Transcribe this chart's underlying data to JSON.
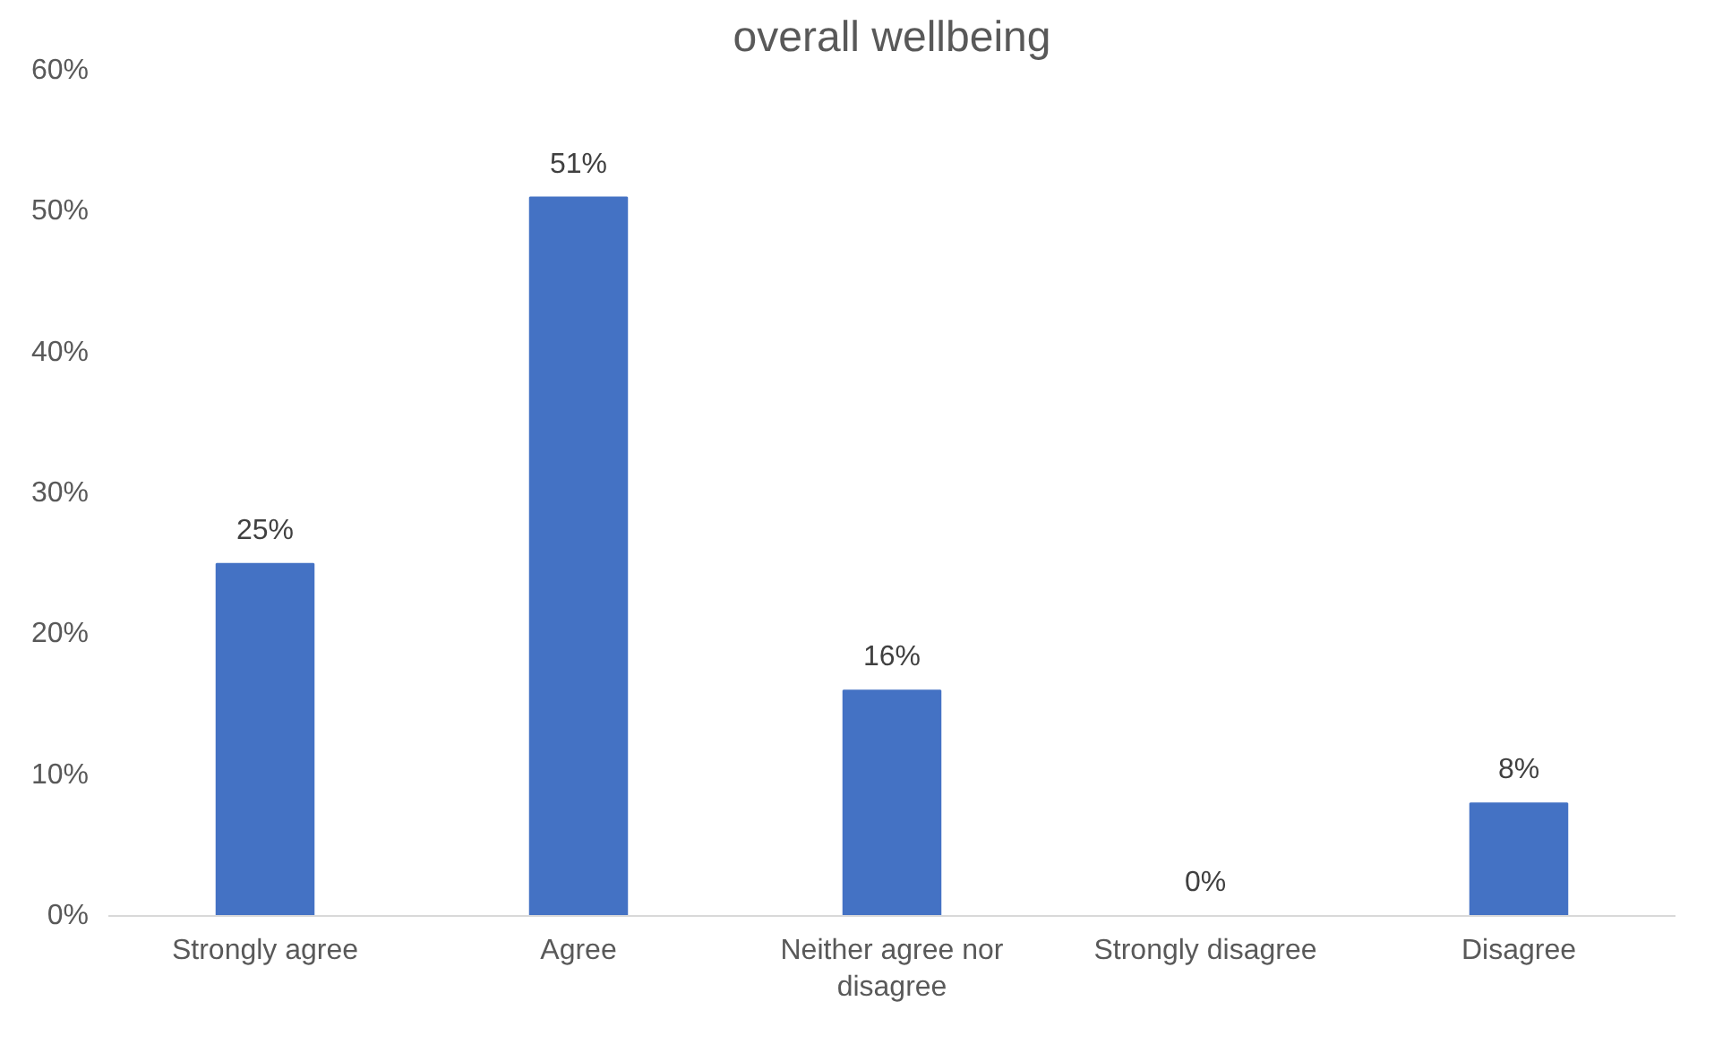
{
  "chart_data": {
    "type": "bar",
    "title": "overall wellbeing",
    "categories": [
      "Strongly agree",
      "Agree",
      "Neither agree nor disagree",
      "Strongly disagree",
      "Disagree"
    ],
    "values": [
      25,
      51,
      16,
      0,
      8
    ],
    "value_labels": [
      "25%",
      "51%",
      "16%",
      "0%",
      "8%"
    ],
    "color": "#4472c4",
    "ylim": [
      0,
      60
    ],
    "yticks": [
      {
        "value": 0,
        "label": "0%"
      },
      {
        "value": 10,
        "label": "10%"
      },
      {
        "value": 20,
        "label": "20%"
      },
      {
        "value": 30,
        "label": "30%"
      },
      {
        "value": 40,
        "label": "40%"
      },
      {
        "value": 50,
        "label": "50%"
      },
      {
        "value": 60,
        "label": "60%"
      }
    ]
  }
}
